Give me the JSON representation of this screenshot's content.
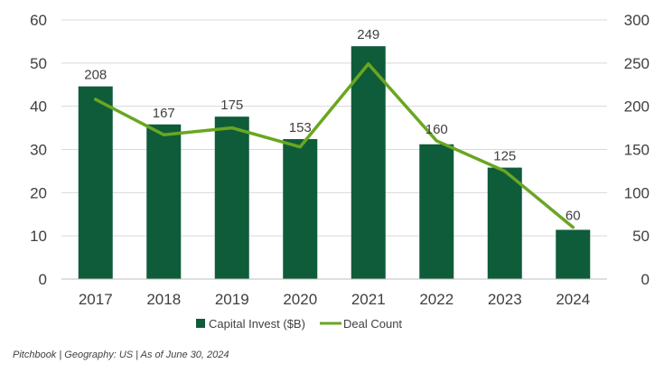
{
  "chart_data": {
    "type": "bar",
    "categories": [
      "2017",
      "2018",
      "2019",
      "2020",
      "2021",
      "2022",
      "2023",
      "2024"
    ],
    "series": [
      {
        "name": "Capital Invest ($B)",
        "type": "bar",
        "axis": "left",
        "values": [
          44.6,
          35.8,
          37.6,
          32.4,
          53.9,
          31.2,
          25.8,
          11.4
        ],
        "color": "#0f5c3a"
      },
      {
        "name": "Deal Count",
        "type": "line",
        "axis": "right",
        "values": [
          208,
          167,
          175,
          153,
          249,
          160,
          125,
          60
        ],
        "labels": [
          "208",
          "167",
          "175",
          "153",
          "249",
          "160",
          "125",
          "60"
        ],
        "color": "#6aa621"
      }
    ],
    "y_left": {
      "min": 0,
      "max": 60,
      "ticks": [
        "0",
        "10",
        "20",
        "30",
        "40",
        "50",
        "60"
      ],
      "label": ""
    },
    "y_right": {
      "min": 0,
      "max": 300,
      "ticks": [
        "0",
        "50",
        "100",
        "150",
        "200",
        "250",
        "300"
      ],
      "label": ""
    },
    "xlabel": "",
    "title": "",
    "grid": true,
    "legend_position": "bottom"
  },
  "footer": {
    "source_note": "Pitchbook | Geography: US | As of June 30, 2024"
  },
  "colors": {
    "grid": "#d9d9d9",
    "axis_line": "#bfbfbf",
    "text": "#404040"
  }
}
